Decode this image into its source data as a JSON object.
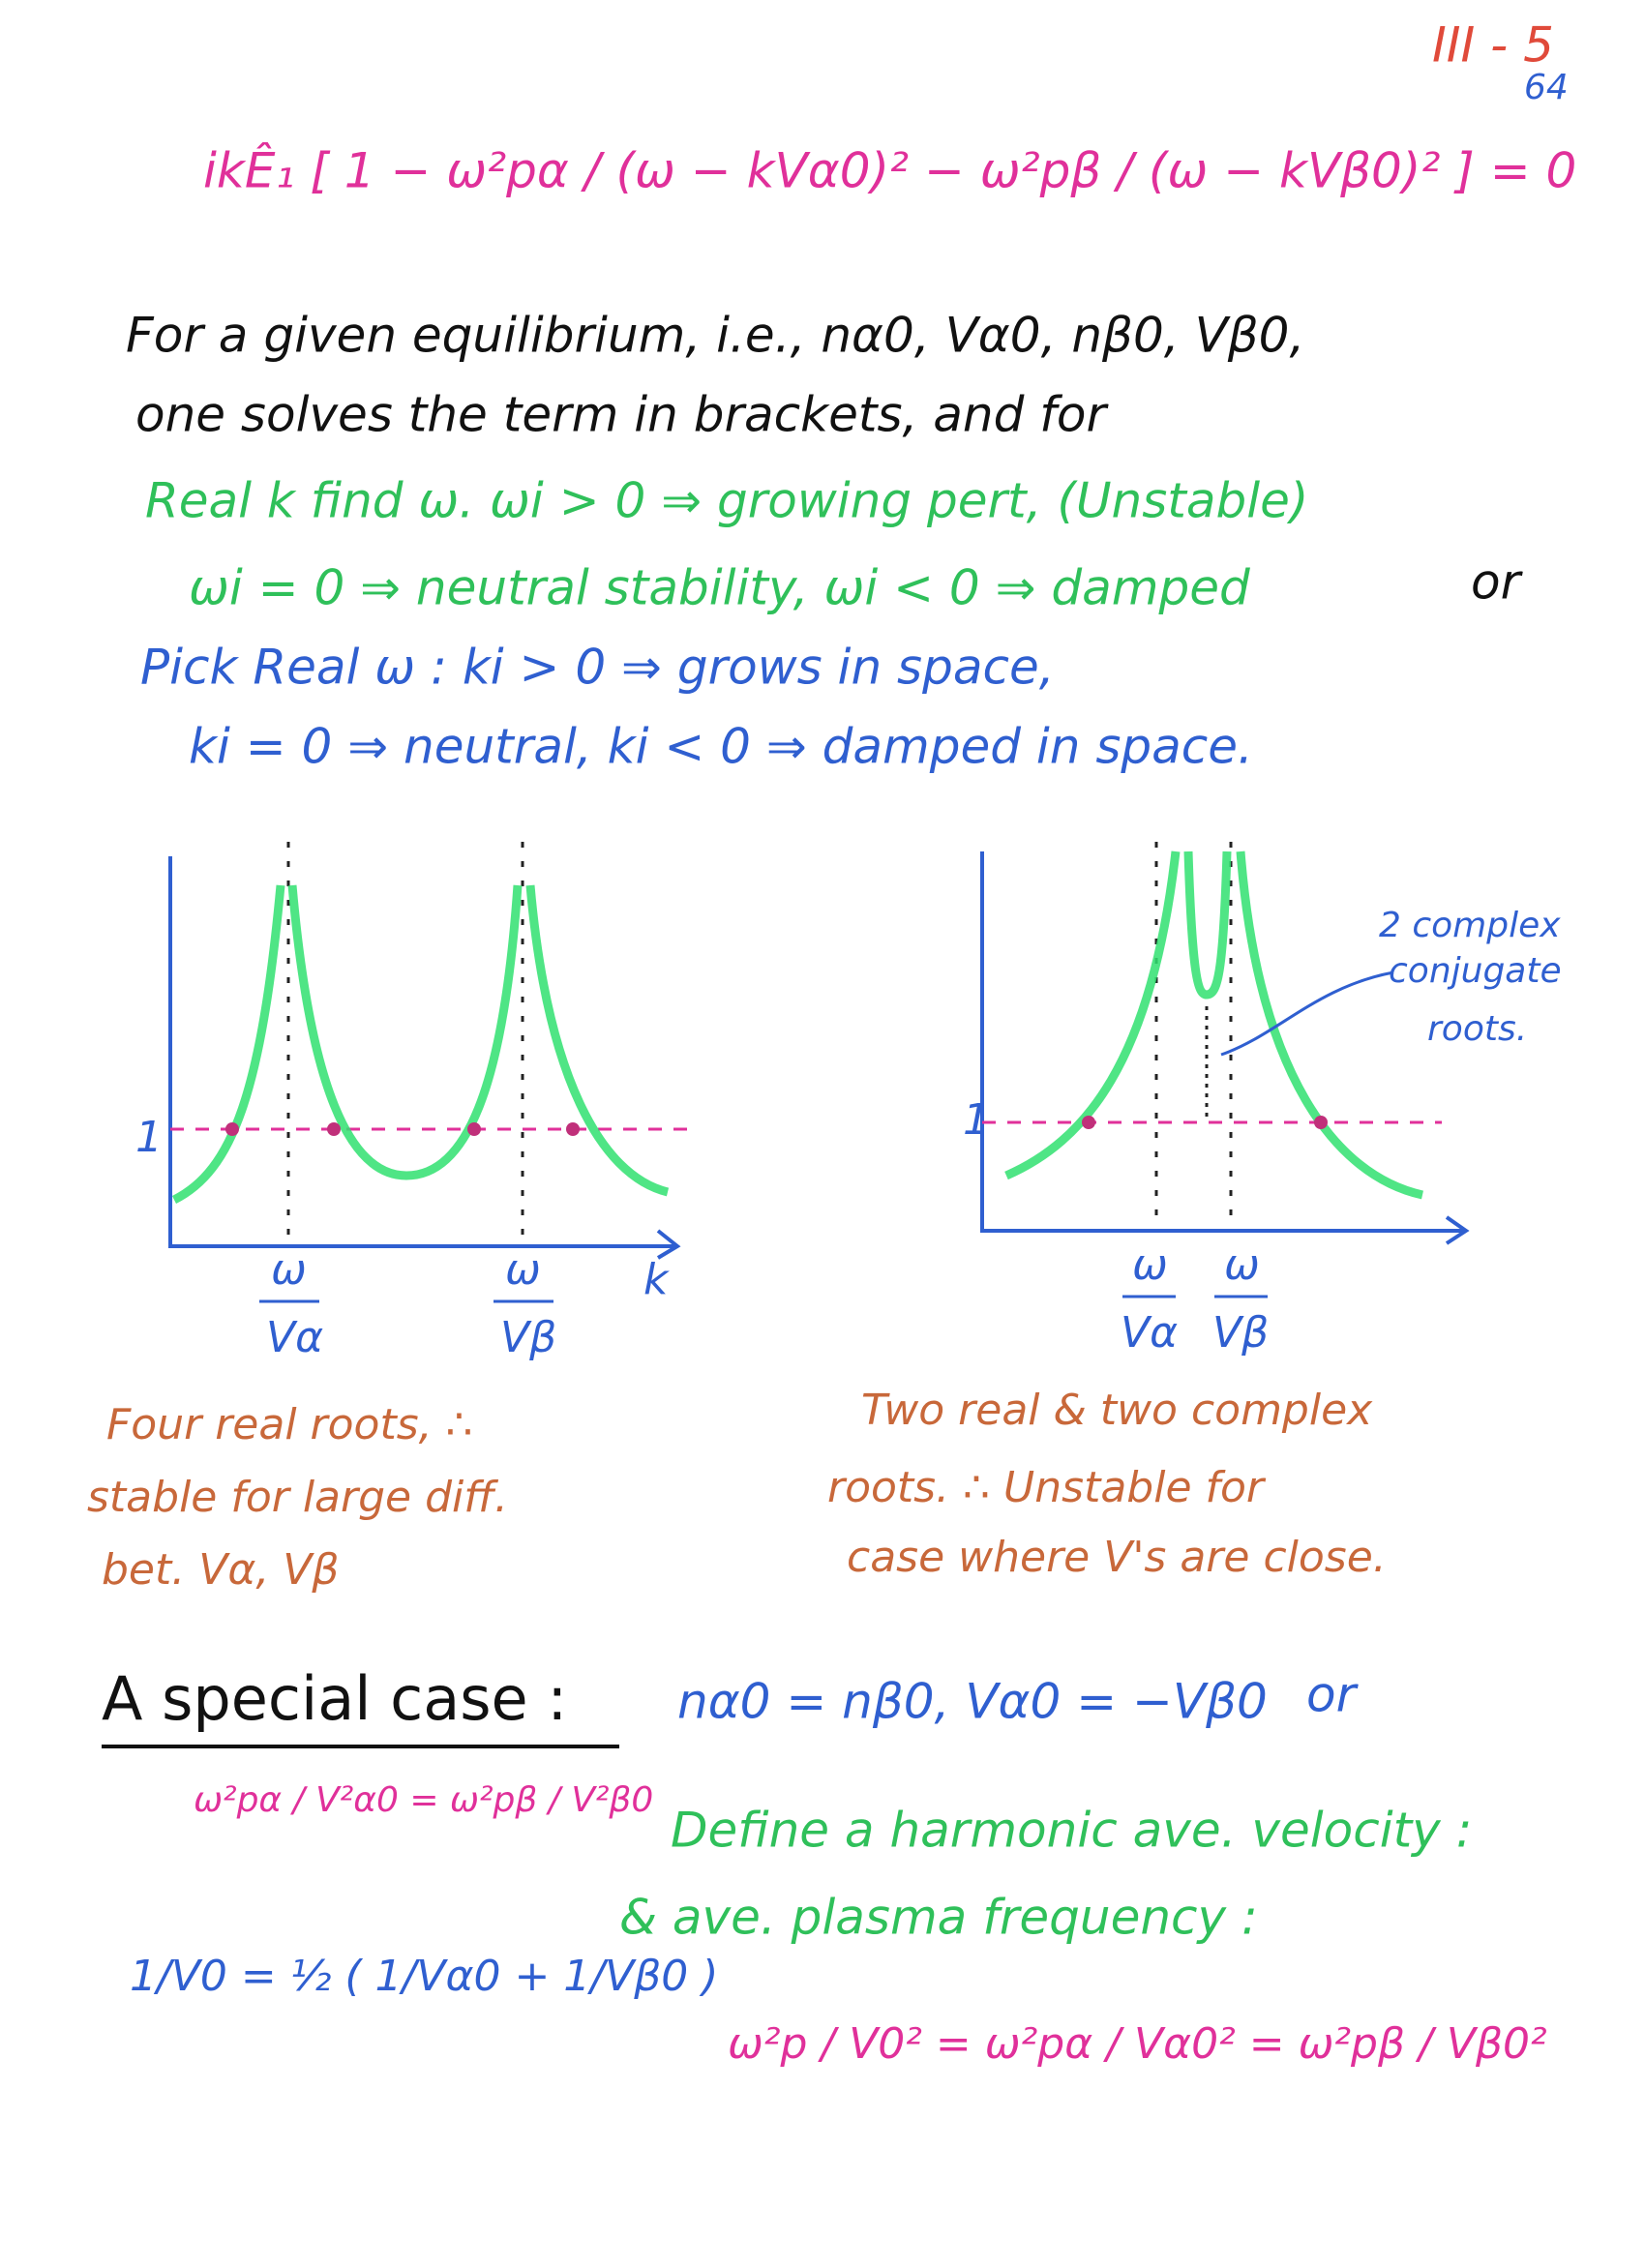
{
  "page_number": {
    "roman": "III - 5",
    "sub": "64"
  },
  "equation": "ikÊ₁ [ 1 − ω²pα / (ω − kVα0)² − ω²pβ / (ω − kVβ0)² ] = 0",
  "paragraph": [
    "For a given equilibrium, i.e., nα0, Vα0, nβ0, Vβ0,",
    "one solves the term in brackets, and for"
  ],
  "real_k": [
    "Real k find ω.    ωi > 0 ⇒ growing pert, (Unstable)",
    "ωi = 0 ⇒ neutral stability, ωi < 0 ⇒ damped"
  ],
  "or": "or",
  "real_omega": [
    "Pick Real ω :  ki > 0 ⇒ grows in space,",
    "ki = 0 ⇒ neutral,  ki < 0 ⇒ damped in space."
  ],
  "figures": [
    {
      "y_label": "1",
      "x_labels": [
        {
          "num": "ω",
          "den": "Vα"
        },
        {
          "num": "ω",
          "den": "Vβ"
        }
      ],
      "axis_label": "k",
      "caption": [
        "Four real roots, ∴",
        "stable for large diff.",
        "bet. Vα, Vβ"
      ]
    },
    {
      "y_label": "1",
      "x_labels": [
        {
          "num": "ω",
          "den": "Vα"
        },
        {
          "num": "ω",
          "den": "Vβ"
        }
      ],
      "annotation": [
        "2 complex",
        "conjugate",
        "roots."
      ],
      "caption": [
        "Two real & two complex",
        "roots. ∴ Unstable for",
        "case where V's are close."
      ]
    }
  ],
  "special_case": {
    "heading": "A special case :",
    "condition": "nα0 = nβ0,  Vα0 = −Vβ0",
    "or": "or",
    "equal": "ω²pα / V²α0 = ω²pβ / V²β0",
    "define": [
      "Define a harmonic ave. velocity :",
      "& ave. plasma frequency :"
    ],
    "harmonic": "1/V0 = ½ ( 1/Vα0 + 1/Vβ0 )",
    "plasma": "ω²p / V0² = ω²pα / Vα0² = ω²pβ / Vβ0²"
  }
}
